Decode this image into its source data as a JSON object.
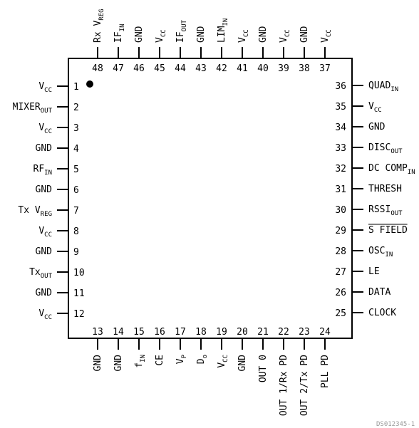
{
  "pins_left": [
    {
      "num": "1",
      "label": "V",
      "sub": "CC"
    },
    {
      "num": "2",
      "label": "MIXER",
      "sub": "OUT"
    },
    {
      "num": "3",
      "label": "V",
      "sub": "CC"
    },
    {
      "num": "4",
      "label": "GND"
    },
    {
      "num": "5",
      "label": "RF",
      "sub": "IN"
    },
    {
      "num": "6",
      "label": "GND"
    },
    {
      "num": "7",
      "label": "Tx V",
      "sub": "REG"
    },
    {
      "num": "8",
      "label": "V",
      "sub": "CC"
    },
    {
      "num": "9",
      "label": "GND"
    },
    {
      "num": "10",
      "label": "Tx",
      "sub": "OUT"
    },
    {
      "num": "11",
      "label": "GND"
    },
    {
      "num": "12",
      "label": "V",
      "sub": "CC"
    }
  ],
  "pins_bottom": [
    {
      "num": "13",
      "label": "GND"
    },
    {
      "num": "14",
      "label": "GND"
    },
    {
      "num": "15",
      "label": "f",
      "sub": "IN"
    },
    {
      "num": "16",
      "label": "CE"
    },
    {
      "num": "17",
      "label": "V",
      "sub": "P"
    },
    {
      "num": "18",
      "label": "D",
      "sub": "o"
    },
    {
      "num": "19",
      "label": "V",
      "sub": "CC"
    },
    {
      "num": "20",
      "label": "GND"
    },
    {
      "num": "21",
      "label": "OUT 0"
    },
    {
      "num": "22",
      "label": "OUT 1/Rx PD"
    },
    {
      "num": "23",
      "label": "OUT 2/Tx PD"
    },
    {
      "num": "24",
      "label": "PLL PD"
    }
  ],
  "pins_right": [
    {
      "num": "25",
      "label": "CLOCK"
    },
    {
      "num": "26",
      "label": "DATA"
    },
    {
      "num": "27",
      "label": "LE"
    },
    {
      "num": "28",
      "label": "OSC",
      "sub": "IN"
    },
    {
      "num": "29",
      "label": "S FIELD",
      "overline": true
    },
    {
      "num": "30",
      "label": "RSSI",
      "sub": "OUT"
    },
    {
      "num": "31",
      "label": "THRESH"
    },
    {
      "num": "32",
      "label": "DC COMP",
      "sub": "IN"
    },
    {
      "num": "33",
      "label": "DISC",
      "sub": "OUT"
    },
    {
      "num": "34",
      "label": "GND"
    },
    {
      "num": "35",
      "label": "V",
      "sub": "CC"
    },
    {
      "num": "36",
      "label": "QUAD",
      "sub": "IN"
    }
  ],
  "pins_top": [
    {
      "num": "37",
      "label": "V",
      "sub": "CC"
    },
    {
      "num": "38",
      "label": "GND"
    },
    {
      "num": "39",
      "label": "V",
      "sub": "CC"
    },
    {
      "num": "40",
      "label": "GND"
    },
    {
      "num": "41",
      "label": "V",
      "sub": "CC"
    },
    {
      "num": "42",
      "label": "LIM",
      "sub": "IN"
    },
    {
      "num": "43",
      "label": "GND"
    },
    {
      "num": "44",
      "label": "IF",
      "sub": "OUT"
    },
    {
      "num": "45",
      "label": "V",
      "sub": "CC"
    },
    {
      "num": "46",
      "label": "GND"
    },
    {
      "num": "47",
      "label": "IF",
      "sub": "IN"
    },
    {
      "num": "48",
      "label": "Rx V",
      "sub": "REG"
    }
  ],
  "footer_code": "DS012345-1"
}
